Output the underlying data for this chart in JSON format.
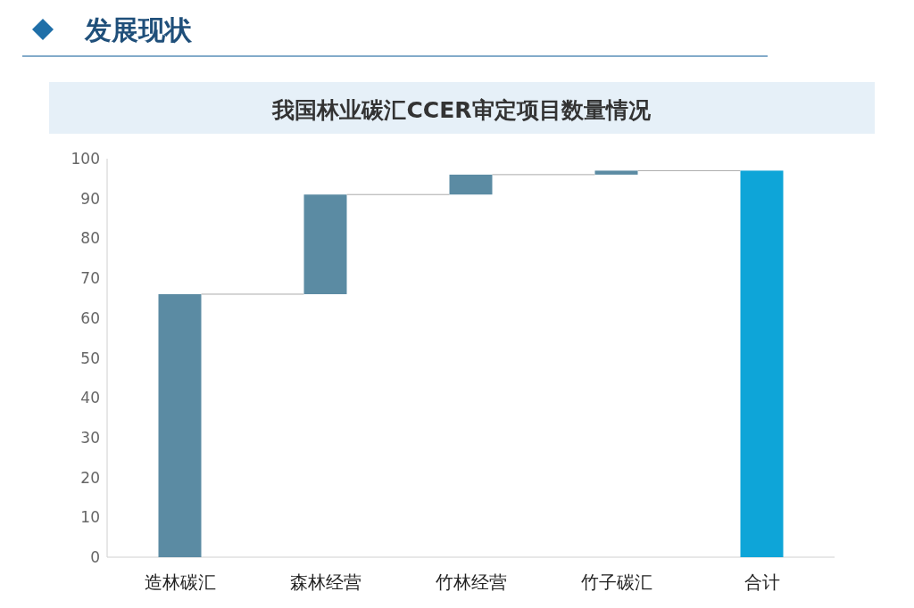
{
  "chart_data": {
    "type": "bar",
    "title": "我国林业碳汇CCER审定项目数量情况",
    "annotations": [
      "发展现状"
    ],
    "categories": [
      "造林碳汇",
      "森林经营",
      "竹林经营",
      "竹子碳汇",
      "合计"
    ],
    "values": [
      66,
      25,
      5,
      1,
      97
    ],
    "base": [
      0,
      66,
      91,
      96,
      0
    ],
    "colors": [
      "#5b8ba3",
      "#5b8ba3",
      "#5b8ba3",
      "#5b8ba3",
      "#0ea5d8"
    ],
    "ylim": [
      0,
      100
    ],
    "yticks": [
      0,
      10,
      20,
      30,
      40,
      50,
      60,
      70,
      80,
      90,
      100
    ],
    "grid": false
  }
}
